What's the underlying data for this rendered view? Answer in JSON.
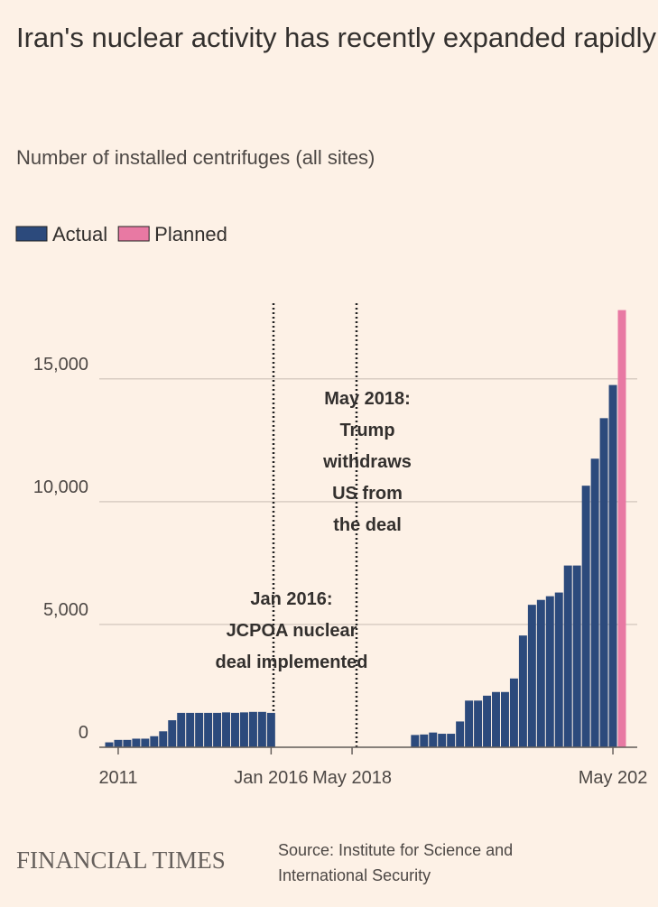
{
  "chart_data": {
    "type": "bar",
    "title": "Iran's nuclear activity has recently expanded rapidly",
    "subtitle": "Number of installed centrifuges (all sites)",
    "categories": [
      null,
      "2011",
      null,
      null,
      null,
      null,
      null,
      null,
      null,
      null,
      null,
      null,
      null,
      null,
      null,
      null,
      null,
      null,
      "Jan 2016",
      null,
      null,
      null,
      null,
      null,
      null,
      null,
      null,
      "May 2018",
      null,
      null,
      null,
      null,
      null,
      null,
      null,
      null,
      null,
      null,
      null,
      null,
      null,
      null,
      null,
      null,
      null,
      null,
      null,
      null,
      null,
      null,
      null,
      null,
      null,
      null,
      null,
      null,
      "May 202",
      null
    ],
    "series": [
      {
        "name": "Actual",
        "color": "#2c4a7c",
        "values": [
          200,
          300,
          300,
          350,
          350,
          450,
          650,
          1100,
          1400,
          1400,
          1400,
          1400,
          1400,
          1420,
          1400,
          1420,
          1440,
          1440,
          1400,
          0,
          0,
          0,
          0,
          0,
          0,
          0,
          0,
          0,
          0,
          0,
          0,
          0,
          0,
          0,
          500,
          520,
          600,
          550,
          550,
          1050,
          1900,
          1900,
          2100,
          2250,
          2250,
          2800,
          4550,
          5800,
          6000,
          6150,
          6300,
          7400,
          7400,
          10650,
          11750,
          13400,
          14750,
          null
        ]
      },
      {
        "name": "Planned",
        "color": "#e879a3",
        "values": [
          null,
          null,
          null,
          null,
          null,
          null,
          null,
          null,
          null,
          null,
          null,
          null,
          null,
          null,
          null,
          null,
          null,
          null,
          null,
          null,
          null,
          null,
          null,
          null,
          null,
          null,
          null,
          null,
          null,
          null,
          null,
          null,
          null,
          null,
          null,
          null,
          null,
          null,
          null,
          null,
          null,
          null,
          null,
          null,
          null,
          null,
          null,
          null,
          null,
          null,
          null,
          null,
          null,
          null,
          null,
          null,
          null,
          17800
        ]
      }
    ],
    "ylim": [
      0,
      18300
    ],
    "yticks": [
      0,
      {
        "value": 5000,
        "label": "5,000"
      },
      {
        "value": 10000,
        "label": "10,000"
      },
      {
        "value": 15000,
        "label": "15,000"
      }
    ],
    "grid": true,
    "annotations": [
      {
        "lines": [
          "Jan 2016:",
          "JCPOA nuclear",
          "deal implemented"
        ]
      },
      {
        "lines": [
          "May 2018:",
          "Trump",
          "withdraws",
          "US from",
          "the deal"
        ]
      }
    ],
    "brand": "FINANCIAL TIMES",
    "source": [
      "Source: Institute for Science and",
      "International Security"
    ]
  }
}
